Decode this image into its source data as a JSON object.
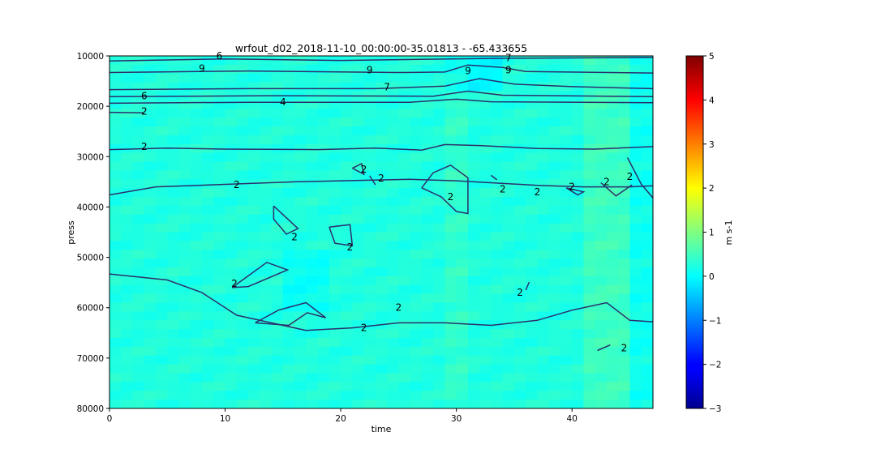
{
  "chart_data": {
    "type": "heatmap",
    "title": "wrfout_d02_2018-11-10_00:00:00-35.01813 - -65.433655",
    "xlabel": "time",
    "ylabel": "press",
    "xlim": [
      0,
      47
    ],
    "ylim": [
      80000,
      10000
    ],
    "y_inverted": true,
    "x_ticks": [
      0,
      10,
      20,
      30,
      40
    ],
    "x_tick_labels": [
      "0",
      "10",
      "20",
      "30",
      "40"
    ],
    "y_ticks": [
      10000,
      20000,
      30000,
      40000,
      50000,
      60000,
      70000,
      80000
    ],
    "y_tick_labels": [
      "10000",
      "20000",
      "30000",
      "40000",
      "50000",
      "60000",
      "70000",
      "80000"
    ],
    "colorbar": {
      "label": "m s-1",
      "colormap": "jet",
      "vmin": -3,
      "vmax": 5,
      "ticks": [
        -3,
        -2,
        -1,
        0,
        1,
        2,
        3,
        4,
        5
      ],
      "tick_labels": [
        "−3",
        "−2",
        "−1",
        "0",
        "1",
        "2",
        "3",
        "4",
        "5"
      ]
    },
    "field_value_range": [
      -0.2,
      0.7
    ],
    "contour_color": "#2a2f6e",
    "contours": [
      {
        "level": "9",
        "label_positions": [
          [
            8,
            12500
          ],
          [
            31,
            13000
          ],
          [
            34.5,
            12800
          ],
          [
            22.5,
            12800
          ]
        ],
        "lines": [
          [
            [
              0,
              13300
            ],
            [
              12,
              13000
            ],
            [
              25,
              13300
            ],
            [
              29,
              13200
            ],
            [
              31,
              11800
            ],
            [
              34,
              12300
            ],
            [
              36,
              13100
            ],
            [
              47,
              13400
            ]
          ]
        ]
      },
      {
        "level": "7",
        "label_positions": [
          [
            24,
            16200
          ],
          [
            34.5,
            10400
          ]
        ],
        "lines": [
          [
            [
              0,
              16700
            ],
            [
              12,
              16500
            ],
            [
              23,
              16500
            ],
            [
              29,
              16000
            ],
            [
              32,
              14500
            ],
            [
              35,
              15600
            ],
            [
              40,
              16100
            ],
            [
              47,
              16500
            ]
          ]
        ]
      },
      {
        "level": "6",
        "label_positions": [
          [
            3,
            18000
          ],
          [
            9.5,
            10000
          ]
        ],
        "lines": [
          [
            [
              0,
              18100
            ],
            [
              14,
              17900
            ],
            [
              28,
              18000
            ],
            [
              31,
              17000
            ],
            [
              34,
              17800
            ],
            [
              47,
              18100
            ]
          ],
          [
            [
              0,
              11000
            ],
            [
              10,
              10600
            ],
            [
              20,
              10900
            ],
            [
              33,
              10500
            ],
            [
              47,
              10300
            ]
          ]
        ]
      },
      {
        "level": "4",
        "label_positions": [
          [
            15,
            19200
          ]
        ],
        "lines": [
          [
            [
              0,
              19400
            ],
            [
              12,
              19200
            ],
            [
              26,
              19200
            ],
            [
              30,
              18600
            ],
            [
              33,
              19100
            ],
            [
              47,
              19300
            ]
          ]
        ]
      },
      {
        "level": "2",
        "label_positions": [
          [
            3,
            21000
          ],
          [
            3,
            28000
          ],
          [
            11,
            35600
          ],
          [
            16,
            46000
          ],
          [
            20.8,
            48000
          ],
          [
            10.8,
            55200
          ],
          [
            25,
            60000
          ],
          [
            22,
            64000
          ],
          [
            40,
            36000
          ],
          [
            37,
            37000
          ],
          [
            35.5,
            57000
          ],
          [
            44.5,
            68000
          ],
          [
            45,
            34000
          ],
          [
            43,
            35000
          ],
          [
            29.5,
            38000
          ],
          [
            23.5,
            34300
          ],
          [
            22,
            32500
          ],
          [
            34,
            36500
          ]
        ],
        "lines": [
          [
            [
              0,
              21200
            ],
            [
              3,
              21300
            ]
          ],
          [
            [
              0,
              28600
            ],
            [
              5,
              28300
            ],
            [
              10,
              28500
            ],
            [
              18,
              28600
            ],
            [
              23,
              28300
            ],
            [
              27,
              28700
            ],
            [
              29,
              27600
            ],
            [
              32,
              27800
            ],
            [
              37,
              28400
            ],
            [
              42,
              28500
            ],
            [
              47,
              28000
            ]
          ],
          [
            [
              0,
              37600
            ],
            [
              4,
              36000
            ],
            [
              10,
              35500
            ],
            [
              16,
              35000
            ],
            [
              22,
              34700
            ],
            [
              26,
              34500
            ],
            [
              30,
              34800
            ],
            [
              37,
              35700
            ],
            [
              41,
              36000
            ],
            [
              45,
              36000
            ],
            [
              47,
              35800
            ]
          ],
          [
            [
              0,
              53300
            ],
            [
              5,
              54500
            ],
            [
              8,
              57000
            ],
            [
              11,
              61500
            ],
            [
              14,
              63000
            ],
            [
              17,
              64500
            ],
            [
              21,
              64000
            ],
            [
              25,
              63000
            ],
            [
              29,
              63000
            ],
            [
              33,
              63500
            ],
            [
              37,
              62500
            ],
            [
              40,
              60500
            ],
            [
              43,
              59000
            ],
            [
              45,
              62500
            ],
            [
              47,
              62800
            ]
          ],
          [
            [
              14.2,
              39800
            ],
            [
              16.3,
              44300
            ],
            [
              15.3,
              45400
            ],
            [
              14.2,
              42400
            ],
            [
              14.2,
              39800
            ]
          ],
          [
            [
              19,
              44000
            ],
            [
              20.8,
              43500
            ],
            [
              21,
              47700
            ],
            [
              19.5,
              47200
            ],
            [
              19,
              44000
            ]
          ],
          [
            [
              10.6,
              56000
            ],
            [
              13.6,
              51000
            ],
            [
              15.4,
              52500
            ],
            [
              12,
              55800
            ],
            [
              10.6,
              56000
            ]
          ],
          [
            [
              12.6,
              63000
            ],
            [
              14.6,
              60500
            ],
            [
              17,
              59000
            ],
            [
              18.7,
              62000
            ],
            [
              17.1,
              61000
            ],
            [
              15.5,
              63500
            ],
            [
              12.6,
              63000
            ]
          ],
          [
            [
              27,
              36200
            ],
            [
              28,
              33200
            ],
            [
              29.5,
              31700
            ],
            [
              31,
              34200
            ],
            [
              31,
              41300
            ],
            [
              30,
              40900
            ],
            [
              28.7,
              38000
            ],
            [
              27,
              36200
            ]
          ],
          [
            [
              21,
              32300
            ],
            [
              21.8,
              31400
            ],
            [
              22,
              33500
            ],
            [
              21,
              32300
            ]
          ],
          [
            [
              22.5,
              33800
            ],
            [
              23,
              35600
            ]
          ],
          [
            [
              33,
              33700
            ],
            [
              33.5,
              34600
            ]
          ],
          [
            [
              36,
              56500
            ],
            [
              36.3,
              54900
            ]
          ],
          [
            [
              42.2,
              68500
            ],
            [
              43.3,
              67400
            ]
          ],
          [
            [
              42.5,
              35200
            ],
            [
              43.8,
              37800
            ],
            [
              45.2,
              35600
            ]
          ],
          [
            [
              44.8,
              30200
            ],
            [
              46,
              35500
            ],
            [
              47,
              38200
            ]
          ],
          [
            [
              39.5,
              36200
            ],
            [
              40.5,
              37600
            ],
            [
              41,
              37000
            ],
            [
              39.5,
              36200
            ]
          ]
        ]
      }
    ]
  }
}
